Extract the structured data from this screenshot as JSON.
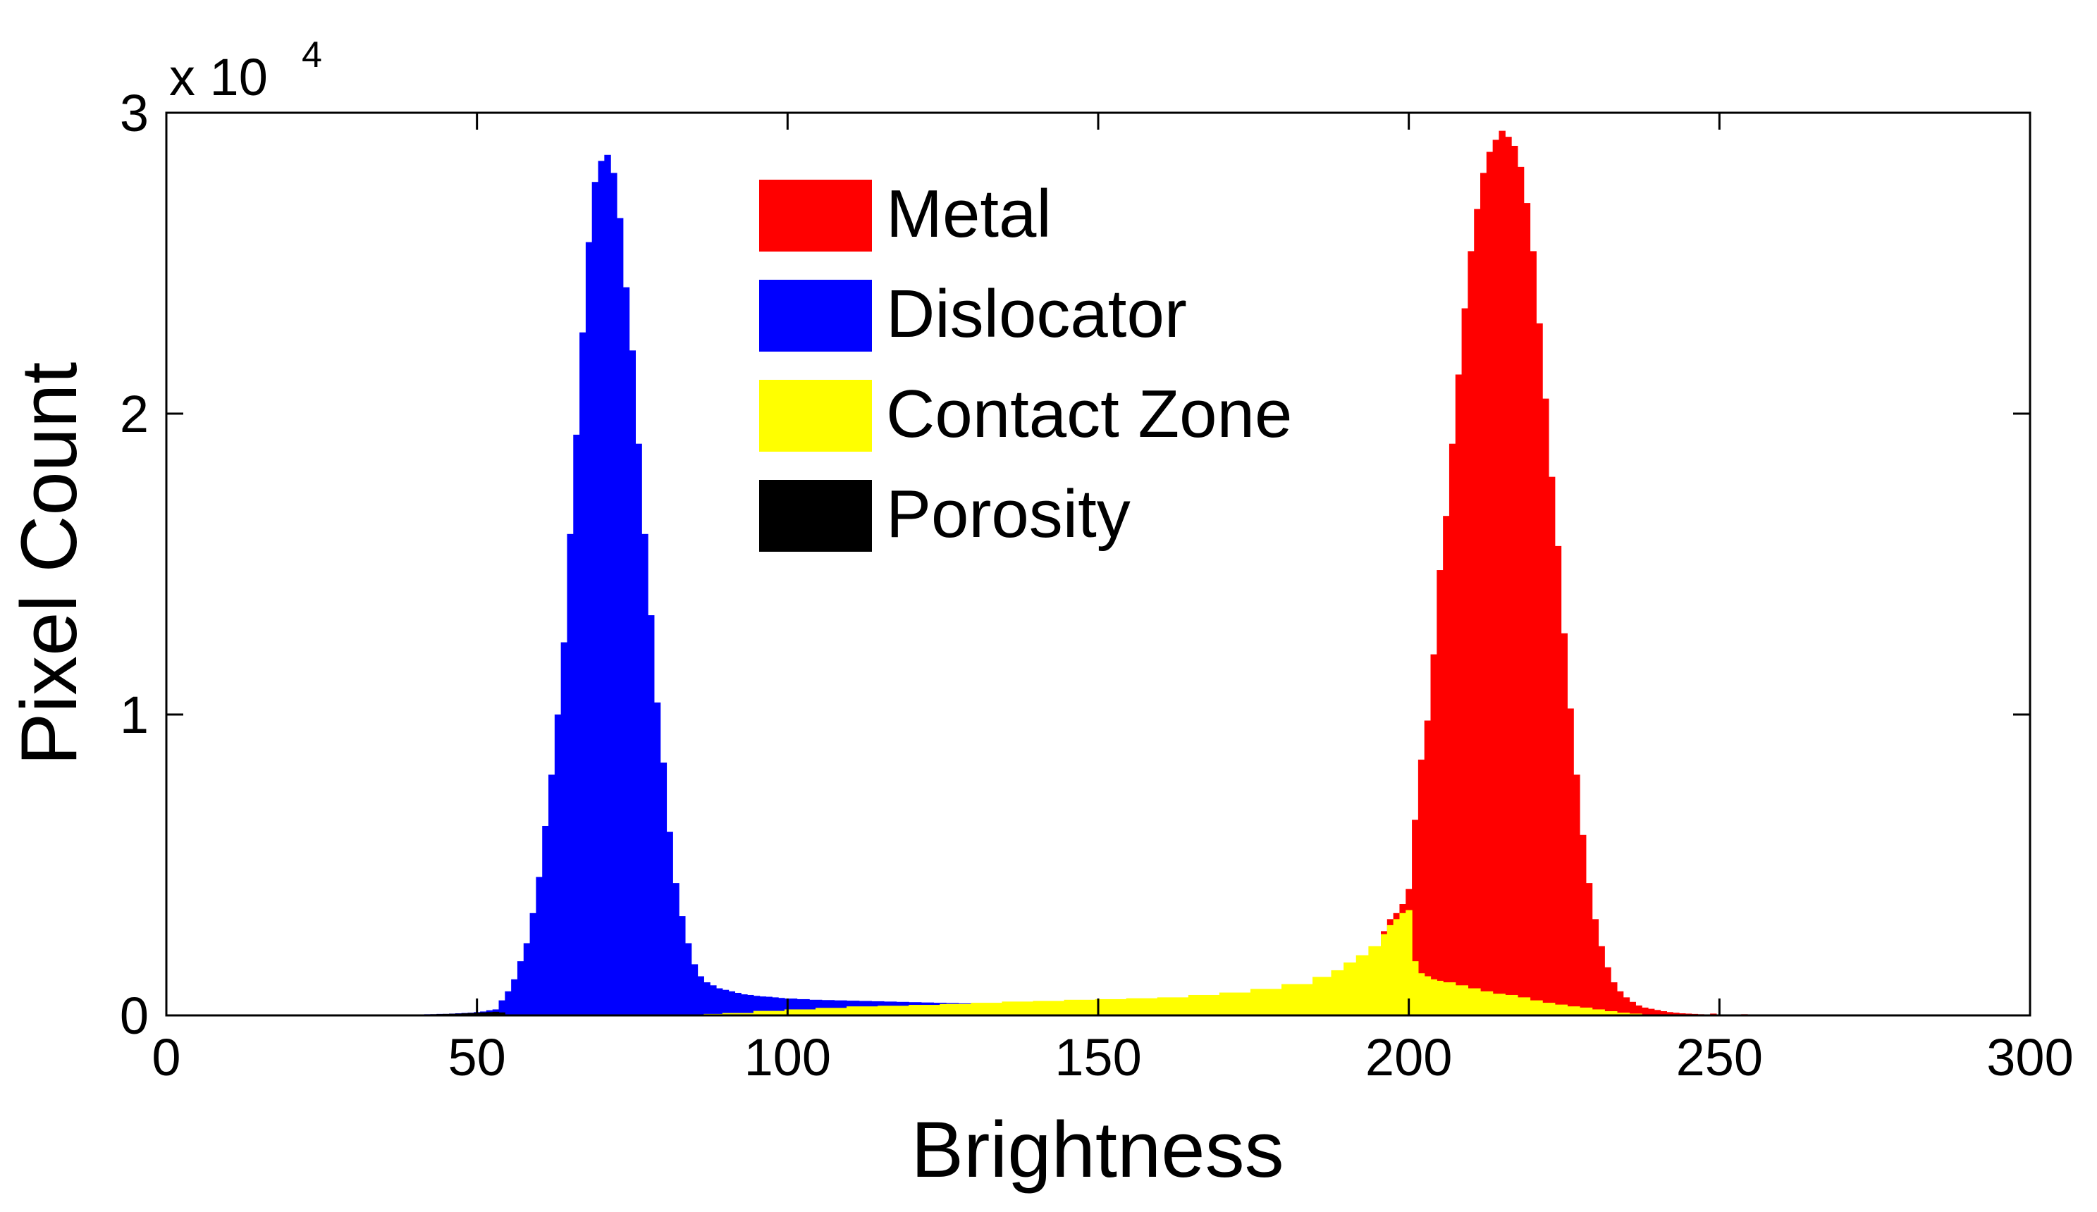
{
  "chart_data": {
    "type": "histogram",
    "xlabel": "Brightness",
    "ylabel": "Pixel Count",
    "y_multiplier": {
      "base": "x 10",
      "exponent": "4"
    },
    "xlim": [
      0,
      300
    ],
    "ylim": [
      0,
      30000
    ],
    "x_ticks": [
      "0",
      "50",
      "100",
      "150",
      "200",
      "250",
      "300"
    ],
    "x_tick_values": [
      0,
      50,
      100,
      150,
      200,
      250,
      300
    ],
    "y_ticks": [
      "0",
      "1",
      "2",
      "3"
    ],
    "y_tick_values": [
      0,
      10000,
      20000,
      30000
    ],
    "bin_width": 1,
    "legend_position": "top-center",
    "series": [
      {
        "name": "Metal",
        "color": "#ff0000",
        "x": [
          196,
          197,
          198,
          199,
          200,
          201,
          202,
          203,
          204,
          205,
          206,
          207,
          208,
          209,
          210,
          211,
          212,
          213,
          214,
          215,
          216,
          217,
          218,
          219,
          220,
          221,
          222,
          223,
          224,
          225,
          226,
          227,
          228,
          229,
          230,
          231,
          232,
          233,
          234,
          235,
          236,
          237,
          238,
          239,
          240,
          241,
          242,
          243,
          244,
          245,
          246,
          247,
          248,
          249,
          250,
          251,
          252,
          253,
          254,
          255,
          256,
          257,
          258
        ],
        "values": [
          2800,
          3200,
          3400,
          3700,
          4200,
          6500,
          8500,
          9800,
          12000,
          14800,
          16600,
          19000,
          21300,
          23500,
          25400,
          26800,
          28000,
          28700,
          29100,
          29400,
          29200,
          28900,
          28200,
          27000,
          25400,
          23000,
          20500,
          17900,
          15600,
          12700,
          10200,
          8000,
          6000,
          4400,
          3200,
          2300,
          1600,
          1100,
          800,
          600,
          450,
          330,
          260,
          220,
          180,
          140,
          110,
          90,
          70,
          60,
          50,
          40,
          30,
          60,
          20,
          20,
          20,
          20,
          40,
          20,
          20,
          10,
          10
        ]
      },
      {
        "name": "Dislocator",
        "color": "#0000ff",
        "x": [
          37,
          38,
          39,
          40,
          41,
          42,
          43,
          44,
          45,
          46,
          47,
          48,
          49,
          50,
          51,
          52,
          53,
          54,
          55,
          56,
          57,
          58,
          59,
          60,
          61,
          62,
          63,
          64,
          65,
          66,
          67,
          68,
          69,
          70,
          71,
          72,
          73,
          74,
          75,
          76,
          77,
          78,
          79,
          80,
          81,
          82,
          83,
          84,
          85,
          86,
          87,
          88,
          89,
          90,
          91,
          92,
          93,
          94,
          95,
          96,
          97,
          98,
          99,
          100,
          102,
          104,
          106,
          108,
          110,
          112,
          114,
          116,
          118,
          120,
          122,
          124,
          126,
          128,
          130,
          132,
          134,
          136,
          138,
          140
        ],
        "values": [
          10,
          20,
          20,
          30,
          30,
          40,
          40,
          50,
          50,
          60,
          70,
          80,
          90,
          110,
          130,
          170,
          200,
          500,
          800,
          1200,
          1800,
          2400,
          3400,
          4600,
          6300,
          8000,
          10000,
          12400,
          16000,
          19300,
          22700,
          25700,
          27700,
          28400,
          28600,
          28000,
          26500,
          24200,
          22100,
          19000,
          16000,
          13300,
          10400,
          8400,
          6100,
          4400,
          3300,
          2400,
          1700,
          1300,
          1100,
          1000,
          900,
          850,
          800,
          750,
          700,
          680,
          650,
          630,
          620,
          600,
          580,
          560,
          540,
          520,
          510,
          500,
          490,
          480,
          470,
          460,
          450,
          440,
          430,
          420,
          410,
          400,
          390,
          380,
          370,
          360,
          350,
          340
        ]
      },
      {
        "name": "Contact Zone",
        "color": "#ffff00",
        "x": [
          87,
          90,
          95,
          100,
          105,
          110,
          115,
          120,
          125,
          130,
          135,
          140,
          145,
          150,
          155,
          160,
          165,
          170,
          175,
          180,
          185,
          188,
          190,
          192,
          194,
          196,
          197,
          198,
          199,
          200,
          201,
          202,
          203,
          204,
          205,
          206,
          208,
          210,
          212,
          214,
          216,
          218,
          220,
          222,
          224,
          226,
          228,
          230,
          232,
          234,
          236,
          238,
          240
        ],
        "values": [
          50,
          80,
          150,
          200,
          250,
          300,
          320,
          350,
          380,
          420,
          460,
          480,
          520,
          540,
          570,
          600,
          680,
          760,
          880,
          1040,
          1280,
          1500,
          1760,
          2000,
          2300,
          2700,
          3000,
          3200,
          3400,
          3500,
          1800,
          1400,
          1300,
          1200,
          1150,
          1100,
          1000,
          900,
          800,
          720,
          680,
          600,
          500,
          420,
          360,
          300,
          260,
          200,
          140,
          90,
          60,
          30,
          10
        ]
      },
      {
        "name": "Porosity",
        "color": "#000000",
        "x": [
          37,
          38,
          39,
          40,
          41,
          42,
          43,
          44,
          45,
          46,
          47,
          48,
          49,
          50,
          51,
          52,
          53,
          54
        ],
        "values": [
          10,
          15,
          20,
          25,
          30,
          35,
          40,
          45,
          50,
          55,
          60,
          70,
          80,
          90,
          100,
          110,
          120,
          100
        ]
      }
    ]
  }
}
